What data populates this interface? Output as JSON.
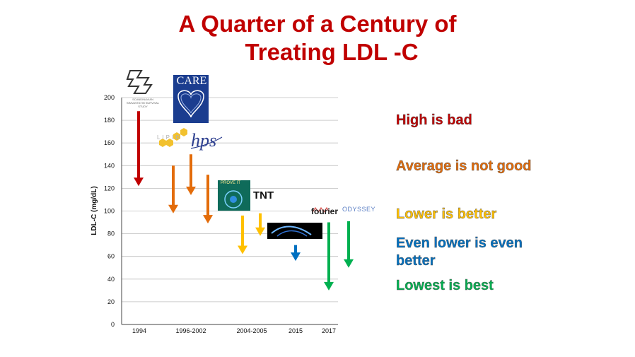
{
  "title": {
    "line1": "A Quarter of a Century of",
    "line2": "Treating LDL -C"
  },
  "legend": [
    {
      "text": "High is bad",
      "color": "#c00000"
    },
    {
      "text": "Average is not good",
      "color": "#e36c0a"
    },
    {
      "text": "Lower is better",
      "color": "#ffc000"
    },
    {
      "text": "Even lower is even better",
      "color": "#0070c0"
    },
    {
      "text": "Lowest is best",
      "color": "#00b050"
    }
  ],
  "logos": {
    "care": "CARE",
    "hps": "hps",
    "tnt": "TNT",
    "fourier": "fourier",
    "odyssey": "ODYSSEY",
    "lipid": "LIPID",
    "prove_it": "PROVE IT",
    "s4s": "SCANDINAVIAN SIMVASTATIN SURVIVAL STUDY"
  },
  "chart_data": {
    "type": "bar",
    "ylabel": "LDL-C (mg/dL)",
    "xlabel": "",
    "ylim": [
      0,
      200
    ],
    "yticks": [
      0,
      20,
      40,
      60,
      80,
      100,
      120,
      140,
      160,
      180,
      200
    ],
    "x_tick_labels": [
      "1994",
      "1996-2002",
      "2004-2005",
      "2015",
      "2017"
    ],
    "grid": true,
    "arrows": [
      {
        "period": "1994",
        "from": 188,
        "to": 122,
        "color": "#c00000"
      },
      {
        "period": "1996-2002",
        "from": 140,
        "to": 98,
        "color": "#e36c0a"
      },
      {
        "period": "1996-2002",
        "from": 150,
        "to": 114,
        "color": "#e36c0a"
      },
      {
        "period": "1996-2002",
        "from": 132,
        "to": 89,
        "color": "#e36c0a"
      },
      {
        "period": "2004-2005",
        "from": 96,
        "to": 62,
        "color": "#ffc000"
      },
      {
        "period": "2004-2005",
        "from": 98,
        "to": 78,
        "color": "#ffc000"
      },
      {
        "period": "2015",
        "from": 70,
        "to": 56,
        "color": "#0070c0"
      },
      {
        "period": "2017",
        "from": 90,
        "to": 30,
        "color": "#00b050"
      },
      {
        "period": "2017",
        "from": 91,
        "to": 50,
        "color": "#00b050"
      }
    ]
  }
}
